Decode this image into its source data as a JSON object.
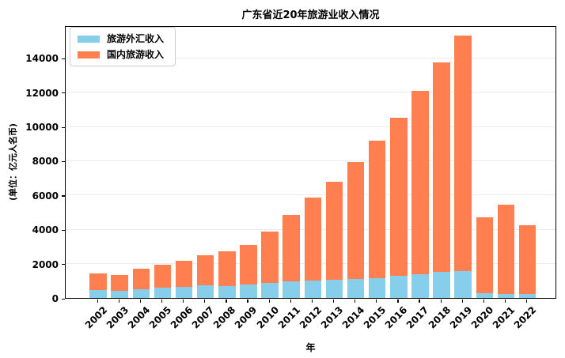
{
  "title": "广东省近20年旅游业收入情况",
  "axes": {
    "x_label": "年",
    "y_label": "(单位：亿元人名币)"
  },
  "legend": {
    "items": [
      {
        "label": "旅游外汇收入",
        "color": "#87CEEB"
      },
      {
        "label": "国内旅游收入",
        "color": "#FF7F50"
      }
    ]
  },
  "chart_data": {
    "type": "bar",
    "stacked": true,
    "title": "广东省近20年旅游业收入情况",
    "xlabel": "年",
    "ylabel": "(单位：亿元人名币)",
    "categories": [
      "2002",
      "2003",
      "2004",
      "2005",
      "2006",
      "2007",
      "2008",
      "2009",
      "2010",
      "2011",
      "2012",
      "2013",
      "2014",
      "2015",
      "2016",
      "2017",
      "2018",
      "2019",
      "2020",
      "2021",
      "2022"
    ],
    "series": [
      {
        "name": "旅游外汇收入",
        "key": "foreign-exchange-income",
        "color": "#87CEEB",
        "values": [
          450,
          400,
          500,
          600,
          650,
          720,
          690,
          770,
          880,
          950,
          1000,
          1050,
          1100,
          1170,
          1290,
          1400,
          1500,
          1550,
          260,
          230,
          220
        ]
      },
      {
        "name": "国内旅游收入",
        "key": "domestic-tourism-income",
        "color": "#FF7F50",
        "values": [
          1000,
          950,
          1200,
          1350,
          1500,
          1760,
          2010,
          2330,
          2970,
          3900,
          4840,
          5740,
          6830,
          8010,
          9210,
          10690,
          12240,
          13730,
          4440,
          5220,
          4030
        ]
      }
    ],
    "totals": [
      1450,
      1350,
      1700,
      1950,
      2150,
      2480,
      2700,
      3100,
      3850,
      4850,
      5840,
      6790,
      7930,
      9180,
      10500,
      12090,
      13740,
      15280,
      4700,
      5450,
      4250
    ],
    "ylim": [
      0,
      15900
    ],
    "yticks": [
      0,
      2000,
      4000,
      6000,
      8000,
      10000,
      12000,
      14000
    ],
    "grid": "horizontal",
    "grid_color": "#ebebeb",
    "legend_position": "upper-left",
    "background": "#ffffff",
    "bar_rotation_x_labels_deg": 45
  }
}
